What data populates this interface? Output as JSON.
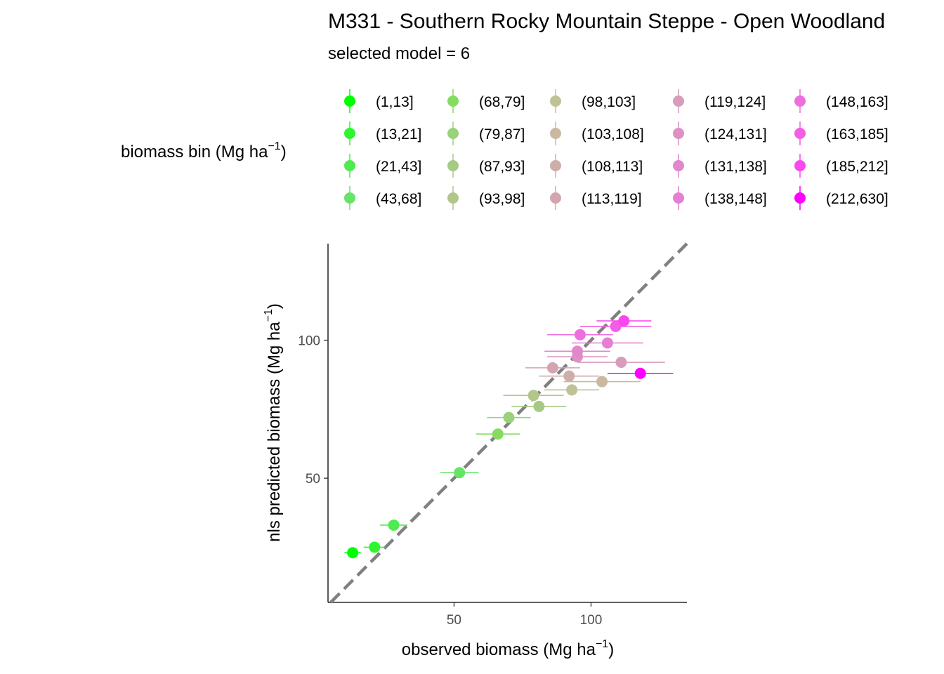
{
  "chart_data": {
    "type": "scatter",
    "title": "M331 - Southern Rocky Mountain Steppe - Open Woodland",
    "subtitle": "selected model = 6",
    "xlabel": "observed biomass (Mg ha",
    "ylabel": "nls predicted biomass (Mg ha",
    "unit_superscript": "−1",
    "unit_close": ")",
    "xlim": [
      4,
      135
    ],
    "ylim": [
      5,
      135
    ],
    "xticks": [
      50,
      100
    ],
    "yticks": [
      50,
      100
    ],
    "reference_line": "y = x",
    "grid": false,
    "legend": {
      "title": "biomass bin (Mg ha",
      "placement": "top",
      "items": [
        {
          "label": "(1,13]",
          "color": "#00FF00"
        },
        {
          "label": "(13,21]",
          "color": "#2EF52E"
        },
        {
          "label": "(21,43]",
          "color": "#4EEB4E"
        },
        {
          "label": "(43,68]",
          "color": "#66E466"
        },
        {
          "label": "(68,79]",
          "color": "#85DC60"
        },
        {
          "label": "(79,87]",
          "color": "#98D27A"
        },
        {
          "label": "(87,93]",
          "color": "#A6CA86"
        },
        {
          "label": "(93,98]",
          "color": "#B2C68C"
        },
        {
          "label": "(98,103]",
          "color": "#BEC296"
        },
        {
          "label": "(103,108]",
          "color": "#C8B9A0"
        },
        {
          "label": "(108,113]",
          "color": "#CEAEA8"
        },
        {
          "label": "(113,119]",
          "color": "#D4A5B0"
        },
        {
          "label": "(119,124]",
          "color": "#D89CBC"
        },
        {
          "label": "(124,131]",
          "color": "#DE90C4"
        },
        {
          "label": "(131,138]",
          "color": "#E287CC"
        },
        {
          "label": "(138,148]",
          "color": "#E67ED4"
        },
        {
          "label": "(148,163]",
          "color": "#EE6EDE"
        },
        {
          "label": "(163,185]",
          "color": "#F25EE4"
        },
        {
          "label": "(185,212]",
          "color": "#F848EE"
        },
        {
          "label": "(212,630]",
          "color": "#FF00FF"
        }
      ]
    },
    "points": [
      {
        "bin": "(1,13]",
        "x": 13,
        "y": 23,
        "xerr": 3
      },
      {
        "bin": "(13,21]",
        "x": 21,
        "y": 25,
        "xerr": 4
      },
      {
        "bin": "(21,43]",
        "x": 28,
        "y": 33,
        "xerr": 5
      },
      {
        "bin": "(43,68]",
        "x": 52,
        "y": 52,
        "xerr": 7
      },
      {
        "bin": "(68,79]",
        "x": 66,
        "y": 66,
        "xerr": 8
      },
      {
        "bin": "(79,87]",
        "x": 70,
        "y": 72,
        "xerr": 8
      },
      {
        "bin": "(87,93]",
        "x": 81,
        "y": 76,
        "xerr": 10
      },
      {
        "bin": "(93,98]",
        "x": 79,
        "y": 80,
        "xerr": 11
      },
      {
        "bin": "(98,103]",
        "x": 93,
        "y": 82,
        "xerr": 10
      },
      {
        "bin": "(103,108]",
        "x": 104,
        "y": 85,
        "xerr": 14
      },
      {
        "bin": "(108,113]",
        "x": 92,
        "y": 87,
        "xerr": 11
      },
      {
        "bin": "(113,119]",
        "x": 86,
        "y": 90,
        "xerr": 10
      },
      {
        "bin": "(119,124]",
        "x": 111,
        "y": 92,
        "xerr": 16
      },
      {
        "bin": "(124,131]",
        "x": 95,
        "y": 94,
        "xerr": 11
      },
      {
        "bin": "(131,138]",
        "x": 95,
        "y": 96,
        "xerr": 12
      },
      {
        "bin": "(138,148]",
        "x": 106,
        "y": 99,
        "xerr": 13
      },
      {
        "bin": "(148,163]",
        "x": 96,
        "y": 102,
        "xerr": 12
      },
      {
        "bin": "(163,185]",
        "x": 109,
        "y": 105,
        "xerr": 13
      },
      {
        "bin": "(185,212]",
        "x": 112,
        "y": 107,
        "xerr": 10
      },
      {
        "bin": "(212,630]",
        "x": 118,
        "y": 88,
        "xerr": 12
      }
    ]
  }
}
